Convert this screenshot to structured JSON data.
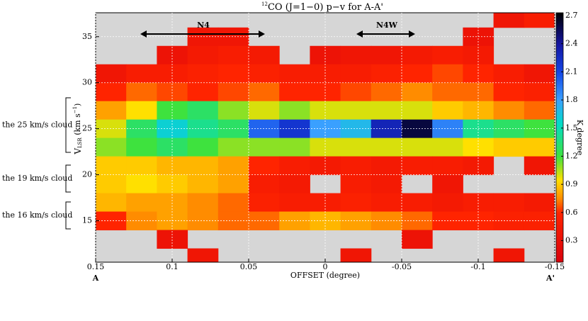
{
  "chart_data": {
    "type": "heatmap",
    "title_superscript": "12",
    "title": "CO (J=1−0) p−v for A-A'",
    "xlabel": "OFFSET (degree)",
    "ylabel_parts": [
      "V",
      "LSR",
      " (km s",
      "−1",
      ")"
    ],
    "colorbar_label": "K degree",
    "end_labels": [
      "A",
      "A'"
    ],
    "regions": [
      "N4",
      "N4W"
    ],
    "cloud_labels": [
      "the 25 km/s cloud",
      "the 19 km/s cloud",
      "the 16 km/s cloud"
    ],
    "x": [
      0.14,
      0.12,
      0.1,
      0.08,
      0.06,
      0.04,
      0.02,
      0,
      -0.02,
      -0.04,
      -0.06,
      -0.08,
      -0.1,
      -0.12,
      -0.14
    ],
    "y": [
      37,
      35,
      33,
      31,
      29,
      27,
      25,
      23,
      21,
      19,
      17,
      15,
      13,
      11
    ],
    "z": [
      [
        null,
        null,
        null,
        null,
        null,
        null,
        null,
        null,
        null,
        null,
        null,
        null,
        null,
        0.4,
        0.5
      ],
      [
        null,
        null,
        null,
        0.4,
        0.4,
        null,
        null,
        null,
        null,
        null,
        null,
        null,
        0.35,
        null,
        null
      ],
      [
        null,
        null,
        0.35,
        0.45,
        0.5,
        0.45,
        null,
        0.35,
        0.4,
        0.4,
        0.45,
        0.5,
        0.45,
        null,
        null
      ],
      [
        0.4,
        0.5,
        0.5,
        0.55,
        0.6,
        0.55,
        0.5,
        0.5,
        0.5,
        0.55,
        0.6,
        0.65,
        0.6,
        0.5,
        0.4
      ],
      [
        0.6,
        0.7,
        0.65,
        0.6,
        0.65,
        0.7,
        0.6,
        0.6,
        0.65,
        0.7,
        0.75,
        0.7,
        0.7,
        0.6,
        0.55
      ],
      [
        0.8,
        0.95,
        1.2,
        1.3,
        1.1,
        1.0,
        1.1,
        1.0,
        1.0,
        1.0,
        1.0,
        0.9,
        0.85,
        0.75,
        0.7
      ],
      [
        1.0,
        1.3,
        1.6,
        1.4,
        1.3,
        2.0,
        2.2,
        1.8,
        1.7,
        2.3,
        2.6,
        1.9,
        1.4,
        1.3,
        1.2
      ],
      [
        1.1,
        1.2,
        1.3,
        1.2,
        1.1,
        1.1,
        1.1,
        1.0,
        1.0,
        1.0,
        1.0,
        1.0,
        0.95,
        0.9,
        0.9
      ],
      [
        0.9,
        0.9,
        0.85,
        0.85,
        0.8,
        0.6,
        0.5,
        0.45,
        0.5,
        0.45,
        0.5,
        0.5,
        0.45,
        null,
        0.4
      ],
      [
        0.9,
        0.95,
        0.9,
        0.85,
        0.8,
        0.5,
        0.45,
        null,
        0.5,
        0.45,
        null,
        0.4,
        null,
        null,
        null
      ],
      [
        0.85,
        0.8,
        0.8,
        0.75,
        0.7,
        0.55,
        0.5,
        0.5,
        0.55,
        0.5,
        0.5,
        0.45,
        0.5,
        0.5,
        0.45
      ],
      [
        0.6,
        0.75,
        0.8,
        0.75,
        0.7,
        0.7,
        0.8,
        0.85,
        0.8,
        0.75,
        0.7,
        0.6,
        0.6,
        0.55,
        0.55
      ],
      [
        null,
        null,
        0.35,
        null,
        null,
        null,
        null,
        null,
        null,
        null,
        0.35,
        null,
        null,
        null,
        null
      ],
      [
        null,
        null,
        null,
        0.4,
        null,
        null,
        null,
        null,
        0.4,
        null,
        null,
        null,
        null,
        0.4,
        null
      ]
    ],
    "xlim": [
      0.15,
      -0.15
    ],
    "xticks": [
      0.15,
      0.1,
      0.05,
      0,
      -0.05,
      -0.1,
      -0.15
    ],
    "ylim": [
      10.5,
      37.6
    ],
    "yticks": [
      15,
      20,
      25,
      30,
      35
    ],
    "clim": [
      0.07,
      2.73
    ],
    "cticks": [
      0.3,
      0.6,
      0.9,
      1.2,
      1.5,
      1.8,
      2.1,
      2.4,
      2.7
    ],
    "colormap": [
      [
        0.07,
        "#d8000c"
      ],
      [
        0.6,
        "#ff2400"
      ],
      [
        0.75,
        "#ff8c00"
      ],
      [
        0.95,
        "#ffe000"
      ],
      [
        1.2,
        "#3ee23e"
      ],
      [
        1.55,
        "#00dcc8"
      ],
      [
        1.8,
        "#3aa0ff"
      ],
      [
        2.1,
        "#1446e6"
      ],
      [
        2.4,
        "#1414a0"
      ],
      [
        2.73,
        "#000000"
      ]
    ],
    "null_color": "#d6d6d6",
    "grid": true
  }
}
